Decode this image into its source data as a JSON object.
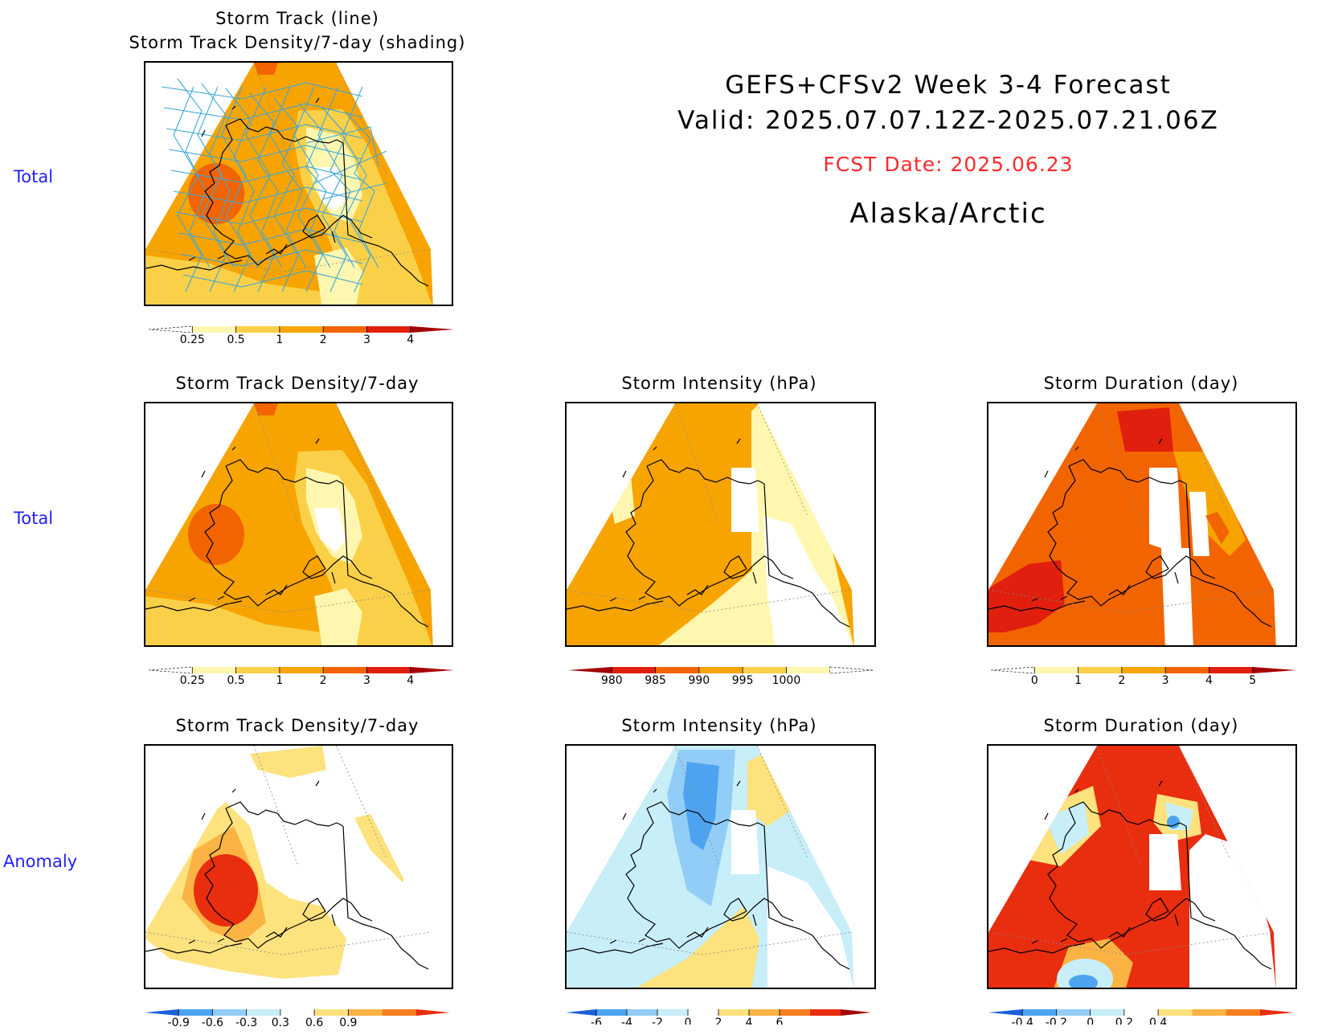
{
  "header": {
    "line1": "GEFS+CFSv2 Week 3-4 Forecast",
    "line2": "Valid: 2025.07.07.12Z-2025.07.21.06Z",
    "fcst": "FCST Date: 2025.06.23",
    "region": "Alaska/Arctic",
    "fcst_color": "#ff2a2a"
  },
  "rows": {
    "r1": "Total",
    "r2": "Total",
    "r3": "Anomaly"
  },
  "chart_data": [
    {
      "type": "heatmap",
      "title": "Storm Track (line)",
      "subtitle": "Storm Track Density/7-day (shading)",
      "row": "Total",
      "colorbar": {
        "ticks": [
          "0.25",
          "0.5",
          "1",
          "2",
          "3",
          "4"
        ],
        "colors": [
          "#ffffff",
          "#fff7b0",
          "#fbd049",
          "#f7a400",
          "#f26400",
          "#e01f0e",
          "#a40000"
        ]
      },
      "overlay": "storm track lines (blue)"
    },
    {
      "type": "heatmap",
      "title": "Storm Track Density/7-day",
      "row": "Total",
      "colorbar": {
        "ticks": [
          "0.25",
          "0.5",
          "1",
          "2",
          "3",
          "4"
        ],
        "colors": [
          "#ffffff",
          "#fff7b0",
          "#fbd049",
          "#f7a400",
          "#f26400",
          "#e01f0e",
          "#a40000"
        ]
      }
    },
    {
      "type": "heatmap",
      "title": "Storm Intensity (hPa)",
      "row": "Total",
      "colorbar": {
        "ticks": [
          "980",
          "985",
          "990",
          "995",
          "1000"
        ],
        "colors": [
          "#a40000",
          "#e01f0e",
          "#f26400",
          "#f7a400",
          "#fbd049",
          "#fff7b0",
          "#ffffff"
        ]
      }
    },
    {
      "type": "heatmap",
      "title": "Storm Duration (day)",
      "row": "Total",
      "colorbar": {
        "ticks": [
          "0",
          "1",
          "2",
          "3",
          "4",
          "5"
        ],
        "colors": [
          "#ffffff",
          "#fff7b0",
          "#fbd049",
          "#f7a400",
          "#f26400",
          "#e01f0e",
          "#a40000"
        ]
      }
    },
    {
      "type": "heatmap",
      "title": "Storm Track Density/7-day",
      "row": "Anomaly",
      "colorbar": {
        "ticks": [
          "-0.9",
          "-0.6",
          "-0.3",
          "0.3",
          "0.6",
          "0.9"
        ],
        "colors": [
          "#1a5fd9",
          "#4ea3f0",
          "#92cdf7",
          "#c8eef8",
          "#ffffff",
          "#fde27d",
          "#fbb443",
          "#f67f1f",
          "#e92d0f"
        ]
      }
    },
    {
      "type": "heatmap",
      "title": "Storm Intensity (hPa)",
      "row": "Anomaly",
      "colorbar": {
        "ticks": [
          "-6",
          "-4",
          "-2",
          "0",
          "2",
          "4",
          "6"
        ],
        "colors": [
          "#1a5fd9",
          "#4ea3f0",
          "#92cdf7",
          "#c8eef8",
          "#ffffff",
          "#fde27d",
          "#fbb443",
          "#f67f1f",
          "#e92d0f",
          "#a40000"
        ]
      }
    },
    {
      "type": "heatmap",
      "title": "Storm Duration (day)",
      "row": "Anomaly",
      "colorbar": {
        "ticks": [
          "-0.4",
          "-0.2",
          "0",
          "0.2",
          "0.4"
        ],
        "colors": [
          "#1a5fd9",
          "#4ea3f0",
          "#92cdf7",
          "#c8eef8",
          "#ffffff",
          "#fde27d",
          "#fbb443",
          "#f67f1f",
          "#e92d0f"
        ]
      }
    }
  ]
}
